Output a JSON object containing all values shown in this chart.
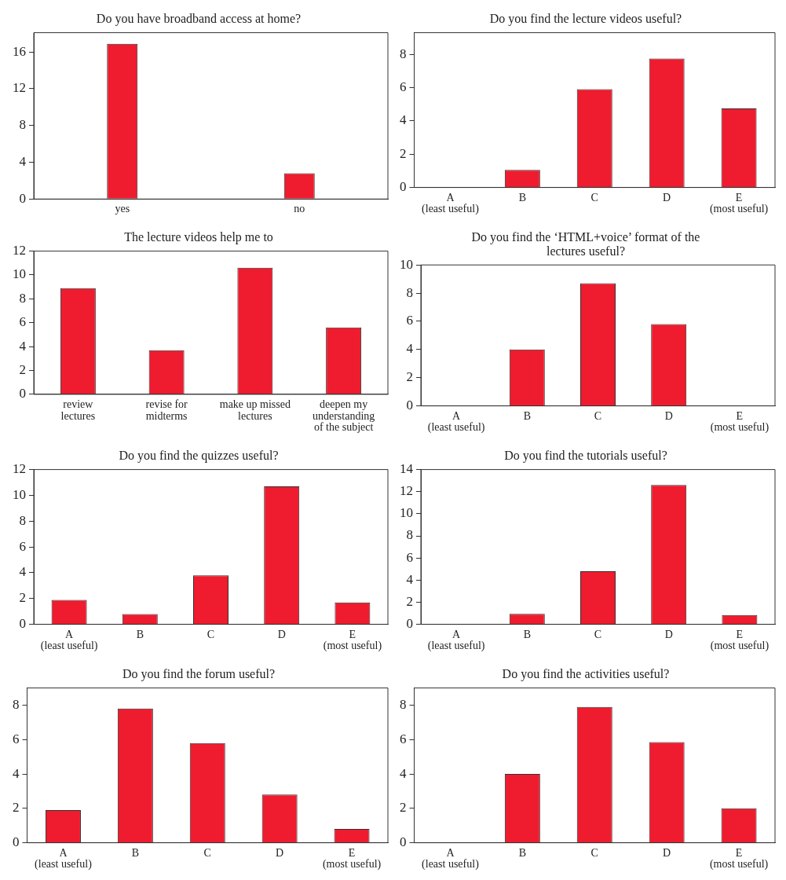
{
  "chart_data": [
    {
      "type": "bar",
      "title": "Do you have broadband access at home?",
      "categories": [
        "yes",
        "no"
      ],
      "values": [
        16.9,
        2.8
      ],
      "color": "#ee1c2e",
      "ylim": [
        0,
        18.1
      ],
      "yticks": [
        0,
        4,
        8,
        12,
        16
      ]
    },
    {
      "type": "bar",
      "title": "Do you find the lecture videos useful?",
      "categories": [
        "A\n(least useful)",
        "B",
        "C",
        "D",
        "E\n(most useful)"
      ],
      "values": [
        0,
        1.05,
        5.9,
        7.75,
        4.75
      ],
      "color": "#ee1c2e",
      "ylim": [
        0,
        9.3
      ],
      "yticks": [
        0,
        2,
        4,
        6,
        8
      ]
    },
    {
      "type": "bar",
      "title": "The lecture videos help me to",
      "categories": [
        "review\nlectures",
        "revise for\nmidterms",
        "make up missed\nlectures",
        "deepen my\nunderstanding\nof the subject"
      ],
      "values": [
        8.9,
        3.7,
        10.6,
        5.6
      ],
      "color": "#ee1c2e",
      "ylim": [
        0,
        12
      ],
      "yticks": [
        0,
        2,
        4,
        6,
        8,
        10,
        12
      ]
    },
    {
      "type": "bar",
      "title": "Do you find the ‘HTML+voice’ format of the lectures useful?",
      "categories": [
        "A\n(least useful)",
        "B",
        "C",
        "D",
        "E\n(most useful)"
      ],
      "values": [
        0,
        4.0,
        8.7,
        5.8,
        0
      ],
      "color": "#ee1c2e",
      "ylim": [
        0,
        10
      ],
      "yticks": [
        0,
        2,
        4,
        6,
        8,
        10
      ]
    },
    {
      "type": "bar",
      "title": "Do you find the quizzes useful?",
      "categories": [
        "A\n(least useful)",
        "B",
        "C",
        "D",
        "E\n(most useful)"
      ],
      "values": [
        1.9,
        0.8,
        3.8,
        10.7,
        1.7
      ],
      "color": "#ee1c2e",
      "ylim": [
        0,
        12
      ],
      "yticks": [
        0,
        2,
        4,
        6,
        8,
        10,
        12
      ]
    },
    {
      "type": "bar",
      "title": "Do you find the tutorials useful?",
      "categories": [
        "A\n(least useful)",
        "B",
        "C",
        "D",
        "E\n(most useful)"
      ],
      "values": [
        0,
        0.95,
        4.8,
        12.6,
        0.85
      ],
      "color": "#ee1c2e",
      "ylim": [
        0,
        14
      ],
      "yticks": [
        0,
        2,
        4,
        6,
        8,
        10,
        12,
        14
      ]
    },
    {
      "type": "bar",
      "title": "Do you find the forum useful?",
      "categories": [
        "A\n(least useful)",
        "B",
        "C",
        "D",
        "E\n(most useful)"
      ],
      "values": [
        1.9,
        7.8,
        5.8,
        2.8,
        0.8
      ],
      "color": "#ee1c2e",
      "ylim": [
        0,
        9
      ],
      "yticks": [
        0,
        2,
        4,
        6,
        8
      ]
    },
    {
      "type": "bar",
      "title": "Do you find the activities useful?",
      "categories": [
        "A\n(least useful)",
        "B",
        "C",
        "D",
        "E\n(most useful)"
      ],
      "values": [
        0,
        4.0,
        7.9,
        5.85,
        2.0
      ],
      "color": "#ee1c2e",
      "ylim": [
        0,
        9
      ],
      "yticks": [
        0,
        2,
        4,
        6,
        8
      ]
    }
  ]
}
